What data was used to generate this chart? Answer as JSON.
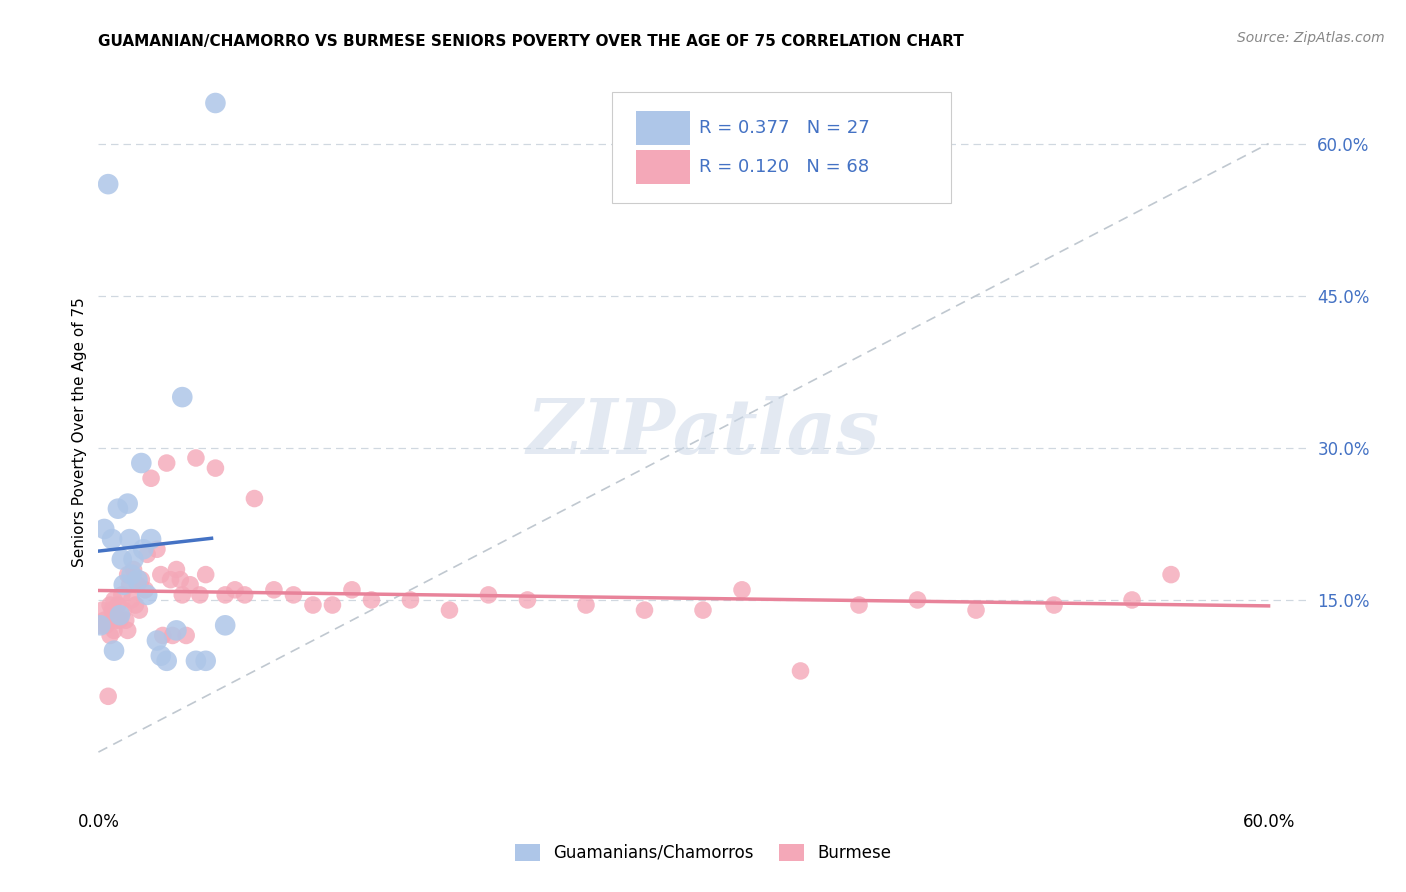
{
  "title": "GUAMANIAN/CHAMORRO VS BURMESE SENIORS POVERTY OVER THE AGE OF 75 CORRELATION CHART",
  "source": "Source: ZipAtlas.com",
  "ylabel": "Seniors Poverty Over the Age of 75",
  "ytick_values": [
    0.15,
    0.3,
    0.45,
    0.6
  ],
  "ytick_labels": [
    "15.0%",
    "30.0%",
    "45.0%",
    "60.0%"
  ],
  "xtick_values": [
    0.0,
    0.6
  ],
  "xtick_labels": [
    "0.0%",
    "60.0%"
  ],
  "xlim": [
    0.0,
    0.62
  ],
  "ylim": [
    -0.05,
    0.68
  ],
  "blue_color": "#aec6e8",
  "blue_line_color": "#4472c4",
  "pink_color": "#f4a8b8",
  "pink_line_color": "#e8839a",
  "legend_text_color": "#4472c4",
  "grid_color": "#d0d8e0",
  "diag_color": "#c0c8d0",
  "watermark_color": "#ccd8e8",
  "guam_x": [
    0.001,
    0.003,
    0.005,
    0.007,
    0.008,
    0.01,
    0.011,
    0.012,
    0.013,
    0.015,
    0.016,
    0.017,
    0.018,
    0.02,
    0.022,
    0.023,
    0.025,
    0.027,
    0.03,
    0.032,
    0.035,
    0.04,
    0.043,
    0.05,
    0.055,
    0.06,
    0.065
  ],
  "guam_y": [
    0.125,
    0.22,
    0.56,
    0.21,
    0.1,
    0.24,
    0.135,
    0.19,
    0.165,
    0.245,
    0.21,
    0.175,
    0.19,
    0.17,
    0.285,
    0.2,
    0.155,
    0.21,
    0.11,
    0.095,
    0.09,
    0.12,
    0.35,
    0.09,
    0.09,
    0.64,
    0.125
  ],
  "burmese_x": [
    0.001,
    0.002,
    0.003,
    0.004,
    0.005,
    0.006,
    0.006,
    0.007,
    0.008,
    0.008,
    0.009,
    0.01,
    0.011,
    0.012,
    0.013,
    0.014,
    0.015,
    0.015,
    0.016,
    0.017,
    0.018,
    0.019,
    0.02,
    0.021,
    0.022,
    0.024,
    0.025,
    0.027,
    0.03,
    0.032,
    0.033,
    0.035,
    0.037,
    0.038,
    0.04,
    0.042,
    0.043,
    0.045,
    0.047,
    0.05,
    0.052,
    0.055,
    0.06,
    0.065,
    0.07,
    0.075,
    0.08,
    0.09,
    0.1,
    0.11,
    0.12,
    0.13,
    0.14,
    0.16,
    0.18,
    0.2,
    0.22,
    0.25,
    0.28,
    0.31,
    0.33,
    0.36,
    0.39,
    0.42,
    0.45,
    0.49,
    0.53,
    0.55
  ],
  "burmese_y": [
    0.125,
    0.14,
    0.13,
    0.125,
    0.055,
    0.145,
    0.115,
    0.14,
    0.15,
    0.12,
    0.13,
    0.145,
    0.13,
    0.155,
    0.14,
    0.13,
    0.175,
    0.12,
    0.165,
    0.15,
    0.18,
    0.145,
    0.165,
    0.14,
    0.17,
    0.16,
    0.195,
    0.27,
    0.2,
    0.175,
    0.115,
    0.285,
    0.17,
    0.115,
    0.18,
    0.17,
    0.155,
    0.115,
    0.165,
    0.29,
    0.155,
    0.175,
    0.28,
    0.155,
    0.16,
    0.155,
    0.25,
    0.16,
    0.155,
    0.145,
    0.145,
    0.16,
    0.15,
    0.15,
    0.14,
    0.155,
    0.15,
    0.145,
    0.14,
    0.14,
    0.16,
    0.08,
    0.145,
    0.15,
    0.14,
    0.145,
    0.15,
    0.175
  ]
}
